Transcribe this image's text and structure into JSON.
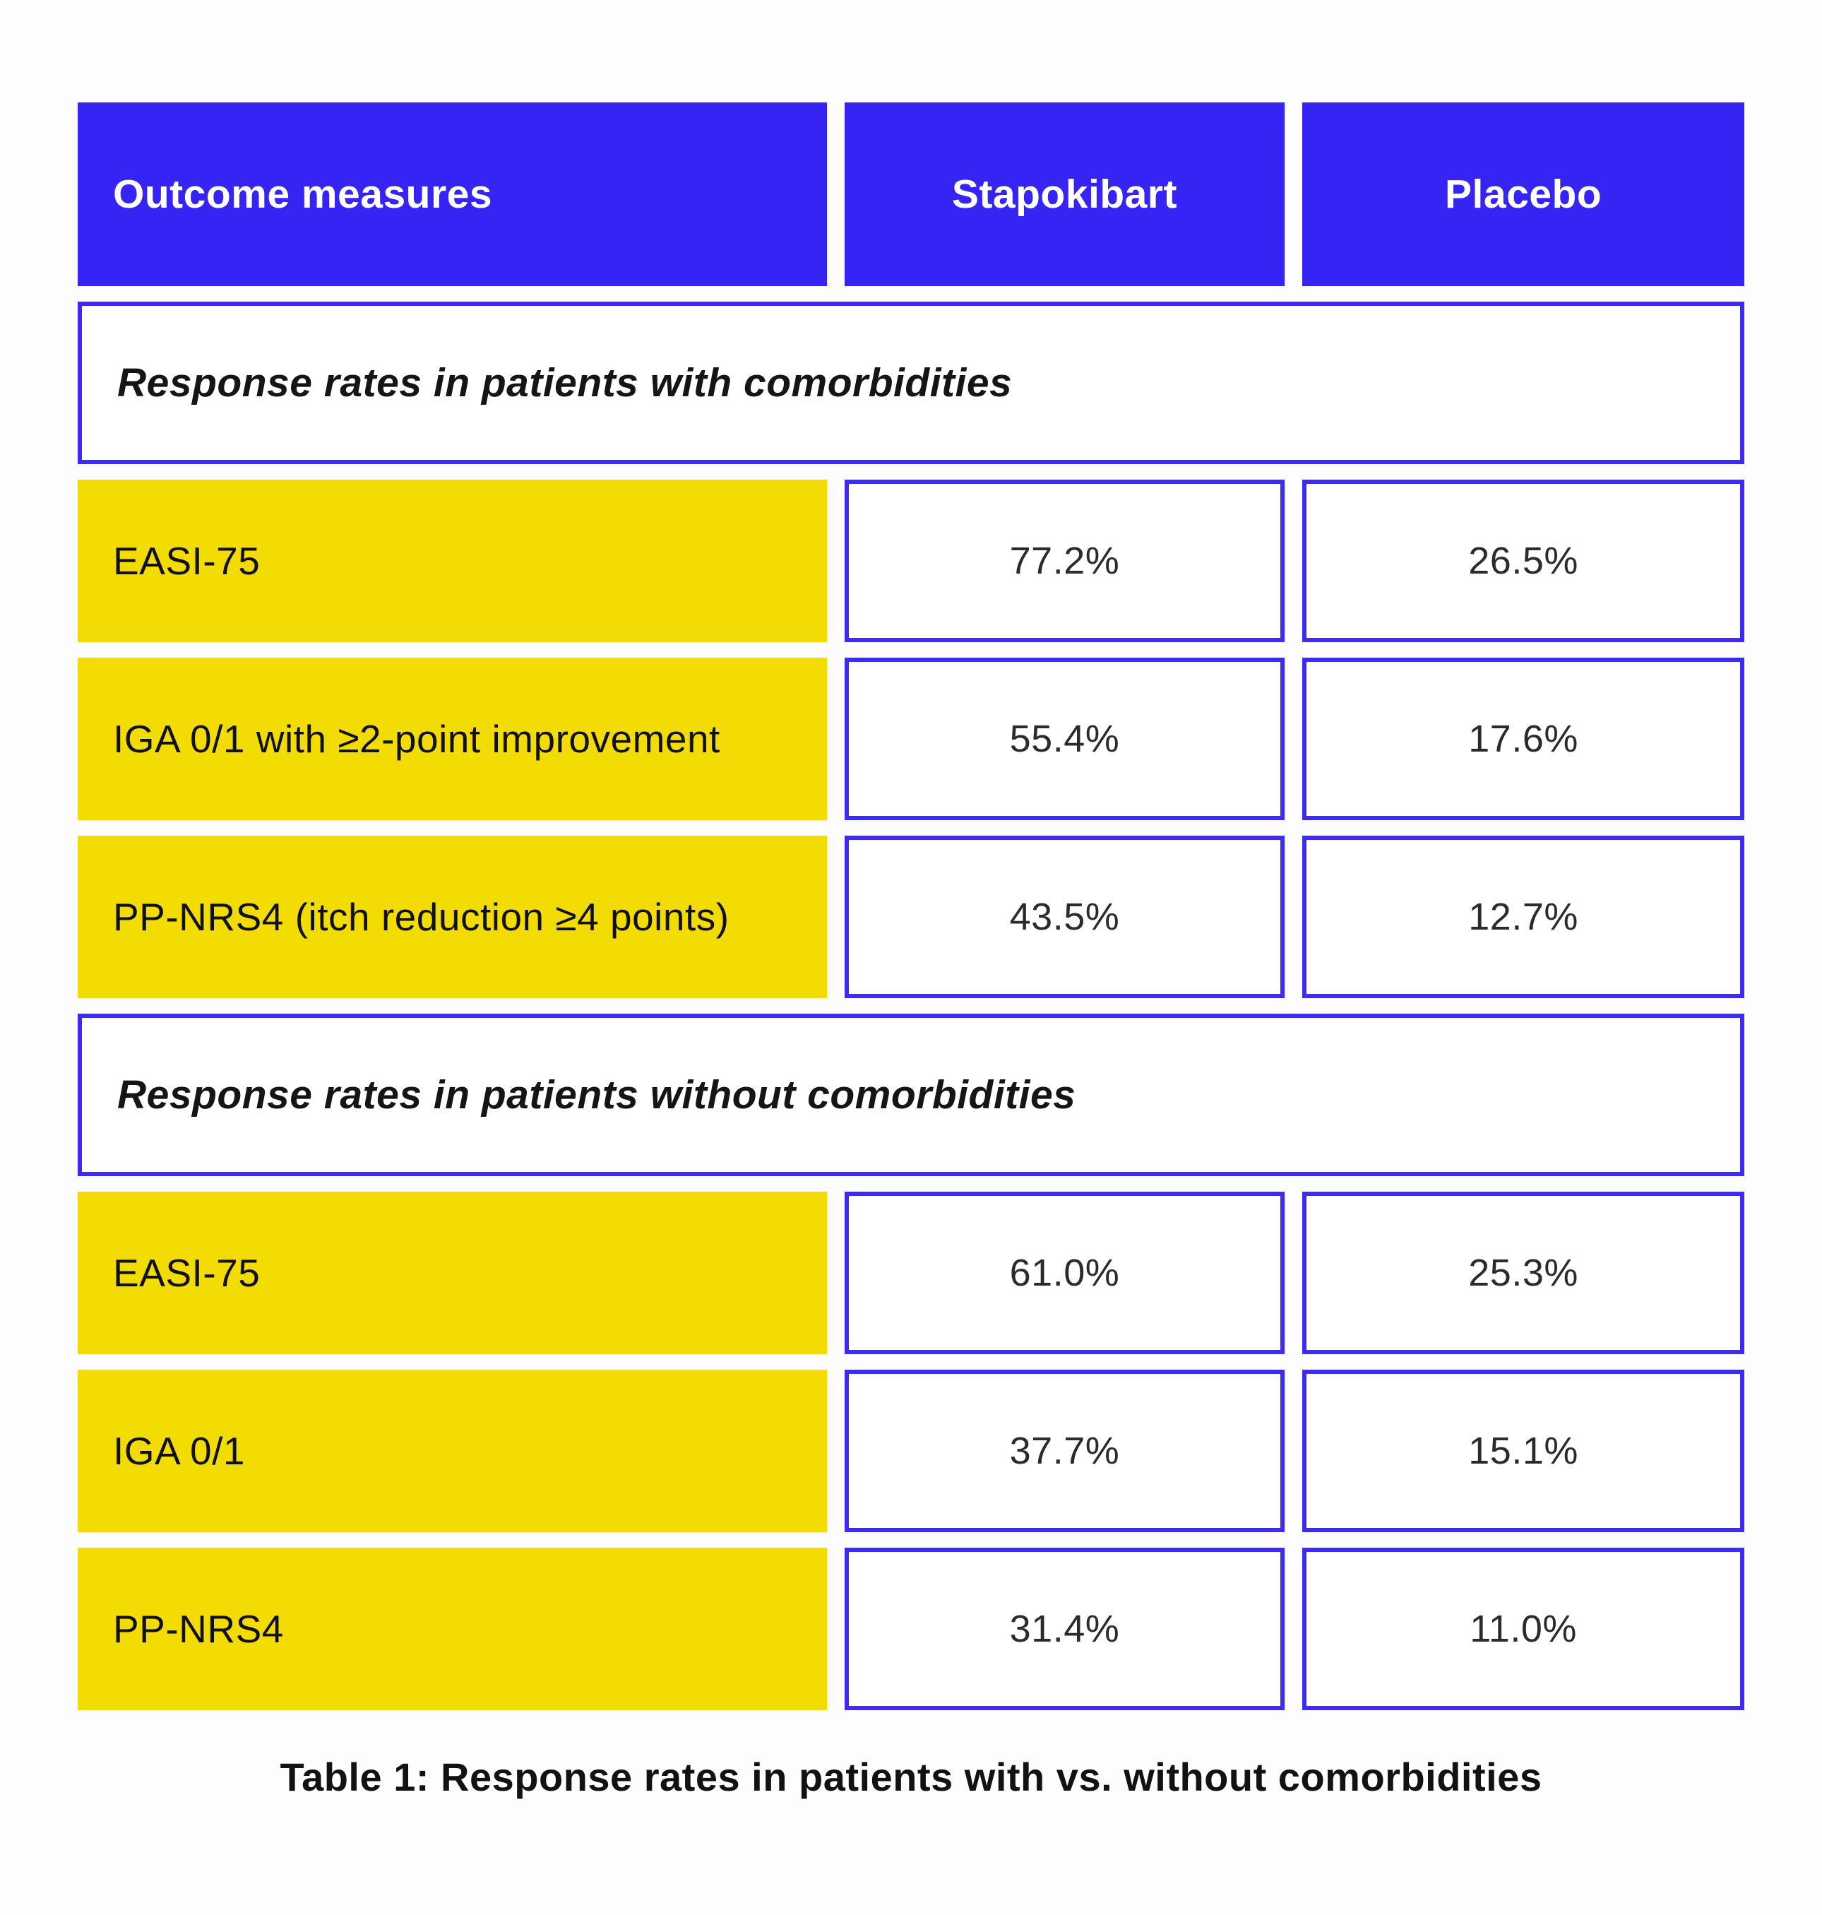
{
  "table": {
    "columns": [
      "Outcome measures",
      "Stapokibart",
      "Placebo"
    ],
    "sections": [
      {
        "title": "Response rates in patients with comorbidities",
        "rows": [
          {
            "label": "EASI-75",
            "stapokibart": "77.2%",
            "placebo": "26.5%"
          },
          {
            "label": "IGA 0/1 with ≥2-point improvement",
            "stapokibart": "55.4%",
            "placebo": "17.6%"
          },
          {
            "label": "PP-NRS4 (itch reduction ≥4 points)",
            "stapokibart": "43.5%",
            "placebo": "12.7%"
          }
        ]
      },
      {
        "title": "Response rates in patients without comorbidities",
        "rows": [
          {
            "label": "EASI-75",
            "stapokibart": "61.0%",
            "placebo": "25.3%"
          },
          {
            "label": "IGA 0/1",
            "stapokibart": "37.7%",
            "placebo": "15.1%"
          },
          {
            "label": "PP-NRS4",
            "stapokibart": "31.4%",
            "placebo": "11.0%"
          }
        ]
      }
    ],
    "caption": "Table 1: Response rates in patients with vs. without comorbidities"
  },
  "chart_data": {
    "type": "table",
    "title": "Table 1: Response rates in patients with vs. without comorbidities",
    "columns": [
      "Outcome measures",
      "Stapokibart",
      "Placebo"
    ],
    "units": "%",
    "sections": [
      {
        "header": "Response rates in patients with comorbidities",
        "rows": [
          [
            "EASI-75",
            77.2,
            26.5
          ],
          [
            "IGA 0/1 with ≥2-point improvement",
            55.4,
            17.6
          ],
          [
            "PP-NRS4 (itch reduction ≥4 points)",
            43.5,
            12.7
          ]
        ]
      },
      {
        "header": "Response rates in patients without comorbidities",
        "rows": [
          [
            "EASI-75",
            61.0,
            25.3
          ],
          [
            "IGA 0/1",
            37.7,
            15.1
          ],
          [
            "PP-NRS4",
            31.4,
            11.0
          ]
        ]
      }
    ]
  },
  "colors": {
    "blue": "#3524f4",
    "blue-border": "#3c2bf2",
    "yellow": "#f2dc04",
    "page-bg": "#fdfdfd"
  }
}
